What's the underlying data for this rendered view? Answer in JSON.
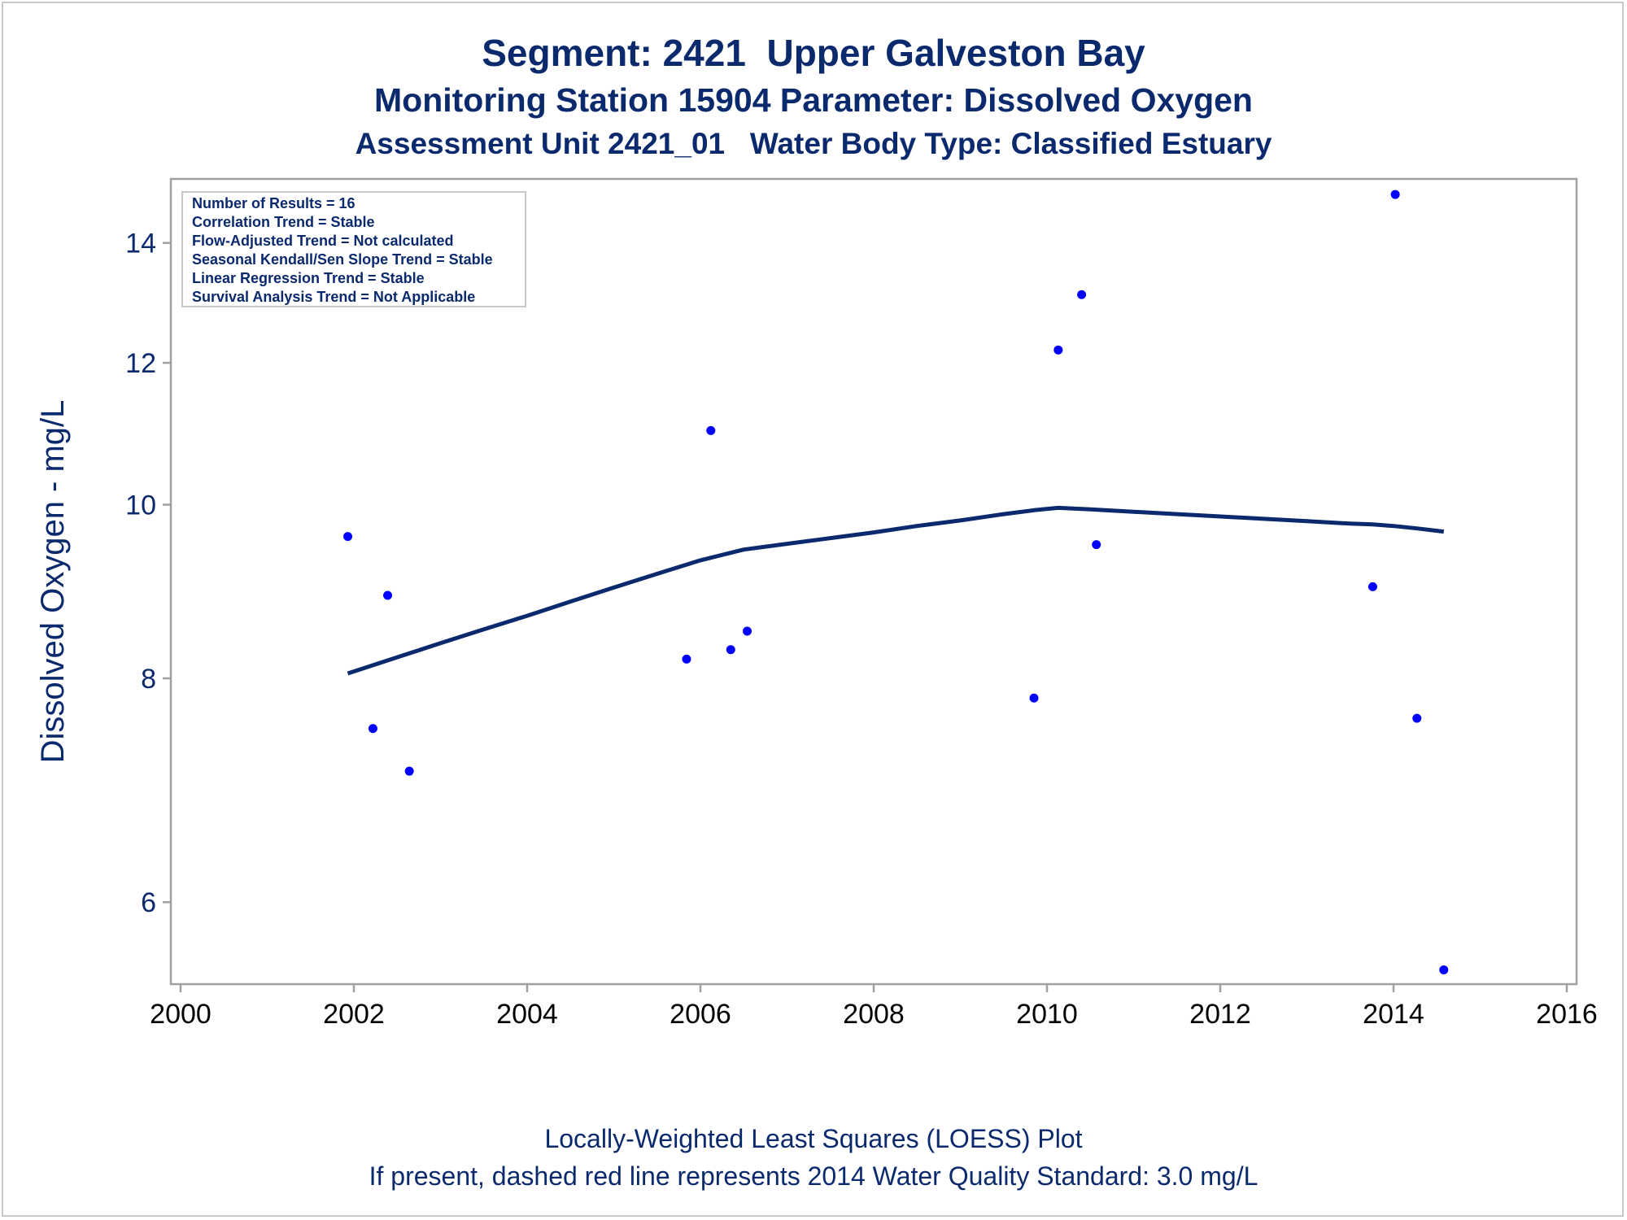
{
  "titles": [
    "Segment: 2421  Upper Galveston Bay",
    "Monitoring Station 15904 Parameter: Dissolved Oxygen",
    "Assessment Unit 2421_01   Water Body Type: Classified Estuary"
  ],
  "footnotes": [
    "Locally-Weighted Least Squares (LOESS) Plot",
    "If present, dashed red line represents 2014 Water Quality Standard: 3.0 mg/L"
  ],
  "inset": [
    "Number of Results = 16",
    "Correlation Trend = Stable",
    "Flow-Adjusted Trend = Not calculated",
    "Seasonal Kendall/Sen Slope Trend = Stable",
    "Linear Regression Trend = Stable",
    "Survival Analysis Trend = Not Applicable"
  ],
  "colors": {
    "text": "#0b2a6e",
    "points": "#0000ff",
    "loess": "#0b2a6e",
    "frame": "#a0a0a0"
  },
  "chart_data": {
    "type": "scatter",
    "xlabel": "",
    "ylabel": "Dissolved Oxygen - mg/L",
    "xlim": [
      2000,
      2016
    ],
    "ylim": [
      5.4,
      15.2
    ],
    "y_scale": "log",
    "xticks": [
      2000,
      2002,
      2004,
      2006,
      2008,
      2010,
      2012,
      2014,
      2016
    ],
    "yticks": [
      6,
      8,
      10,
      12,
      14
    ],
    "grid": false,
    "legend": "top-left inset",
    "points": [
      {
        "x": 2001.93,
        "y": 9.6
      },
      {
        "x": 2002.22,
        "y": 7.5
      },
      {
        "x": 2002.39,
        "y": 8.9
      },
      {
        "x": 2002.64,
        "y": 7.1
      },
      {
        "x": 2005.84,
        "y": 8.2
      },
      {
        "x": 2006.12,
        "y": 11.0
      },
      {
        "x": 2006.35,
        "y": 8.3
      },
      {
        "x": 2006.54,
        "y": 8.5
      },
      {
        "x": 2009.85,
        "y": 7.8
      },
      {
        "x": 2010.13,
        "y": 12.2
      },
      {
        "x": 2010.4,
        "y": 13.1
      },
      {
        "x": 2010.57,
        "y": 9.5
      },
      {
        "x": 2013.76,
        "y": 9.0
      },
      {
        "x": 2014.02,
        "y": 14.9
      },
      {
        "x": 2014.27,
        "y": 7.6
      },
      {
        "x": 2014.58,
        "y": 5.5
      }
    ],
    "loess": {
      "name": "LOESS",
      "x": [
        2001.93,
        2002.5,
        2003.0,
        2003.5,
        2004.0,
        2004.5,
        2005.0,
        2005.5,
        2006.0,
        2006.5,
        2007.0,
        2007.5,
        2008.0,
        2008.5,
        2009.0,
        2009.5,
        2009.85,
        2010.13,
        2010.5,
        2011.0,
        2011.5,
        2012.0,
        2012.5,
        2013.0,
        2013.5,
        2013.76,
        2014.0,
        2014.27,
        2014.58
      ],
      "y": [
        8.05,
        8.22,
        8.37,
        8.52,
        8.67,
        8.83,
        8.99,
        9.15,
        9.31,
        9.44,
        9.51,
        9.58,
        9.65,
        9.73,
        9.8,
        9.88,
        9.93,
        9.96,
        9.94,
        9.91,
        9.88,
        9.85,
        9.82,
        9.79,
        9.76,
        9.75,
        9.73,
        9.7,
        9.66
      ]
    }
  }
}
